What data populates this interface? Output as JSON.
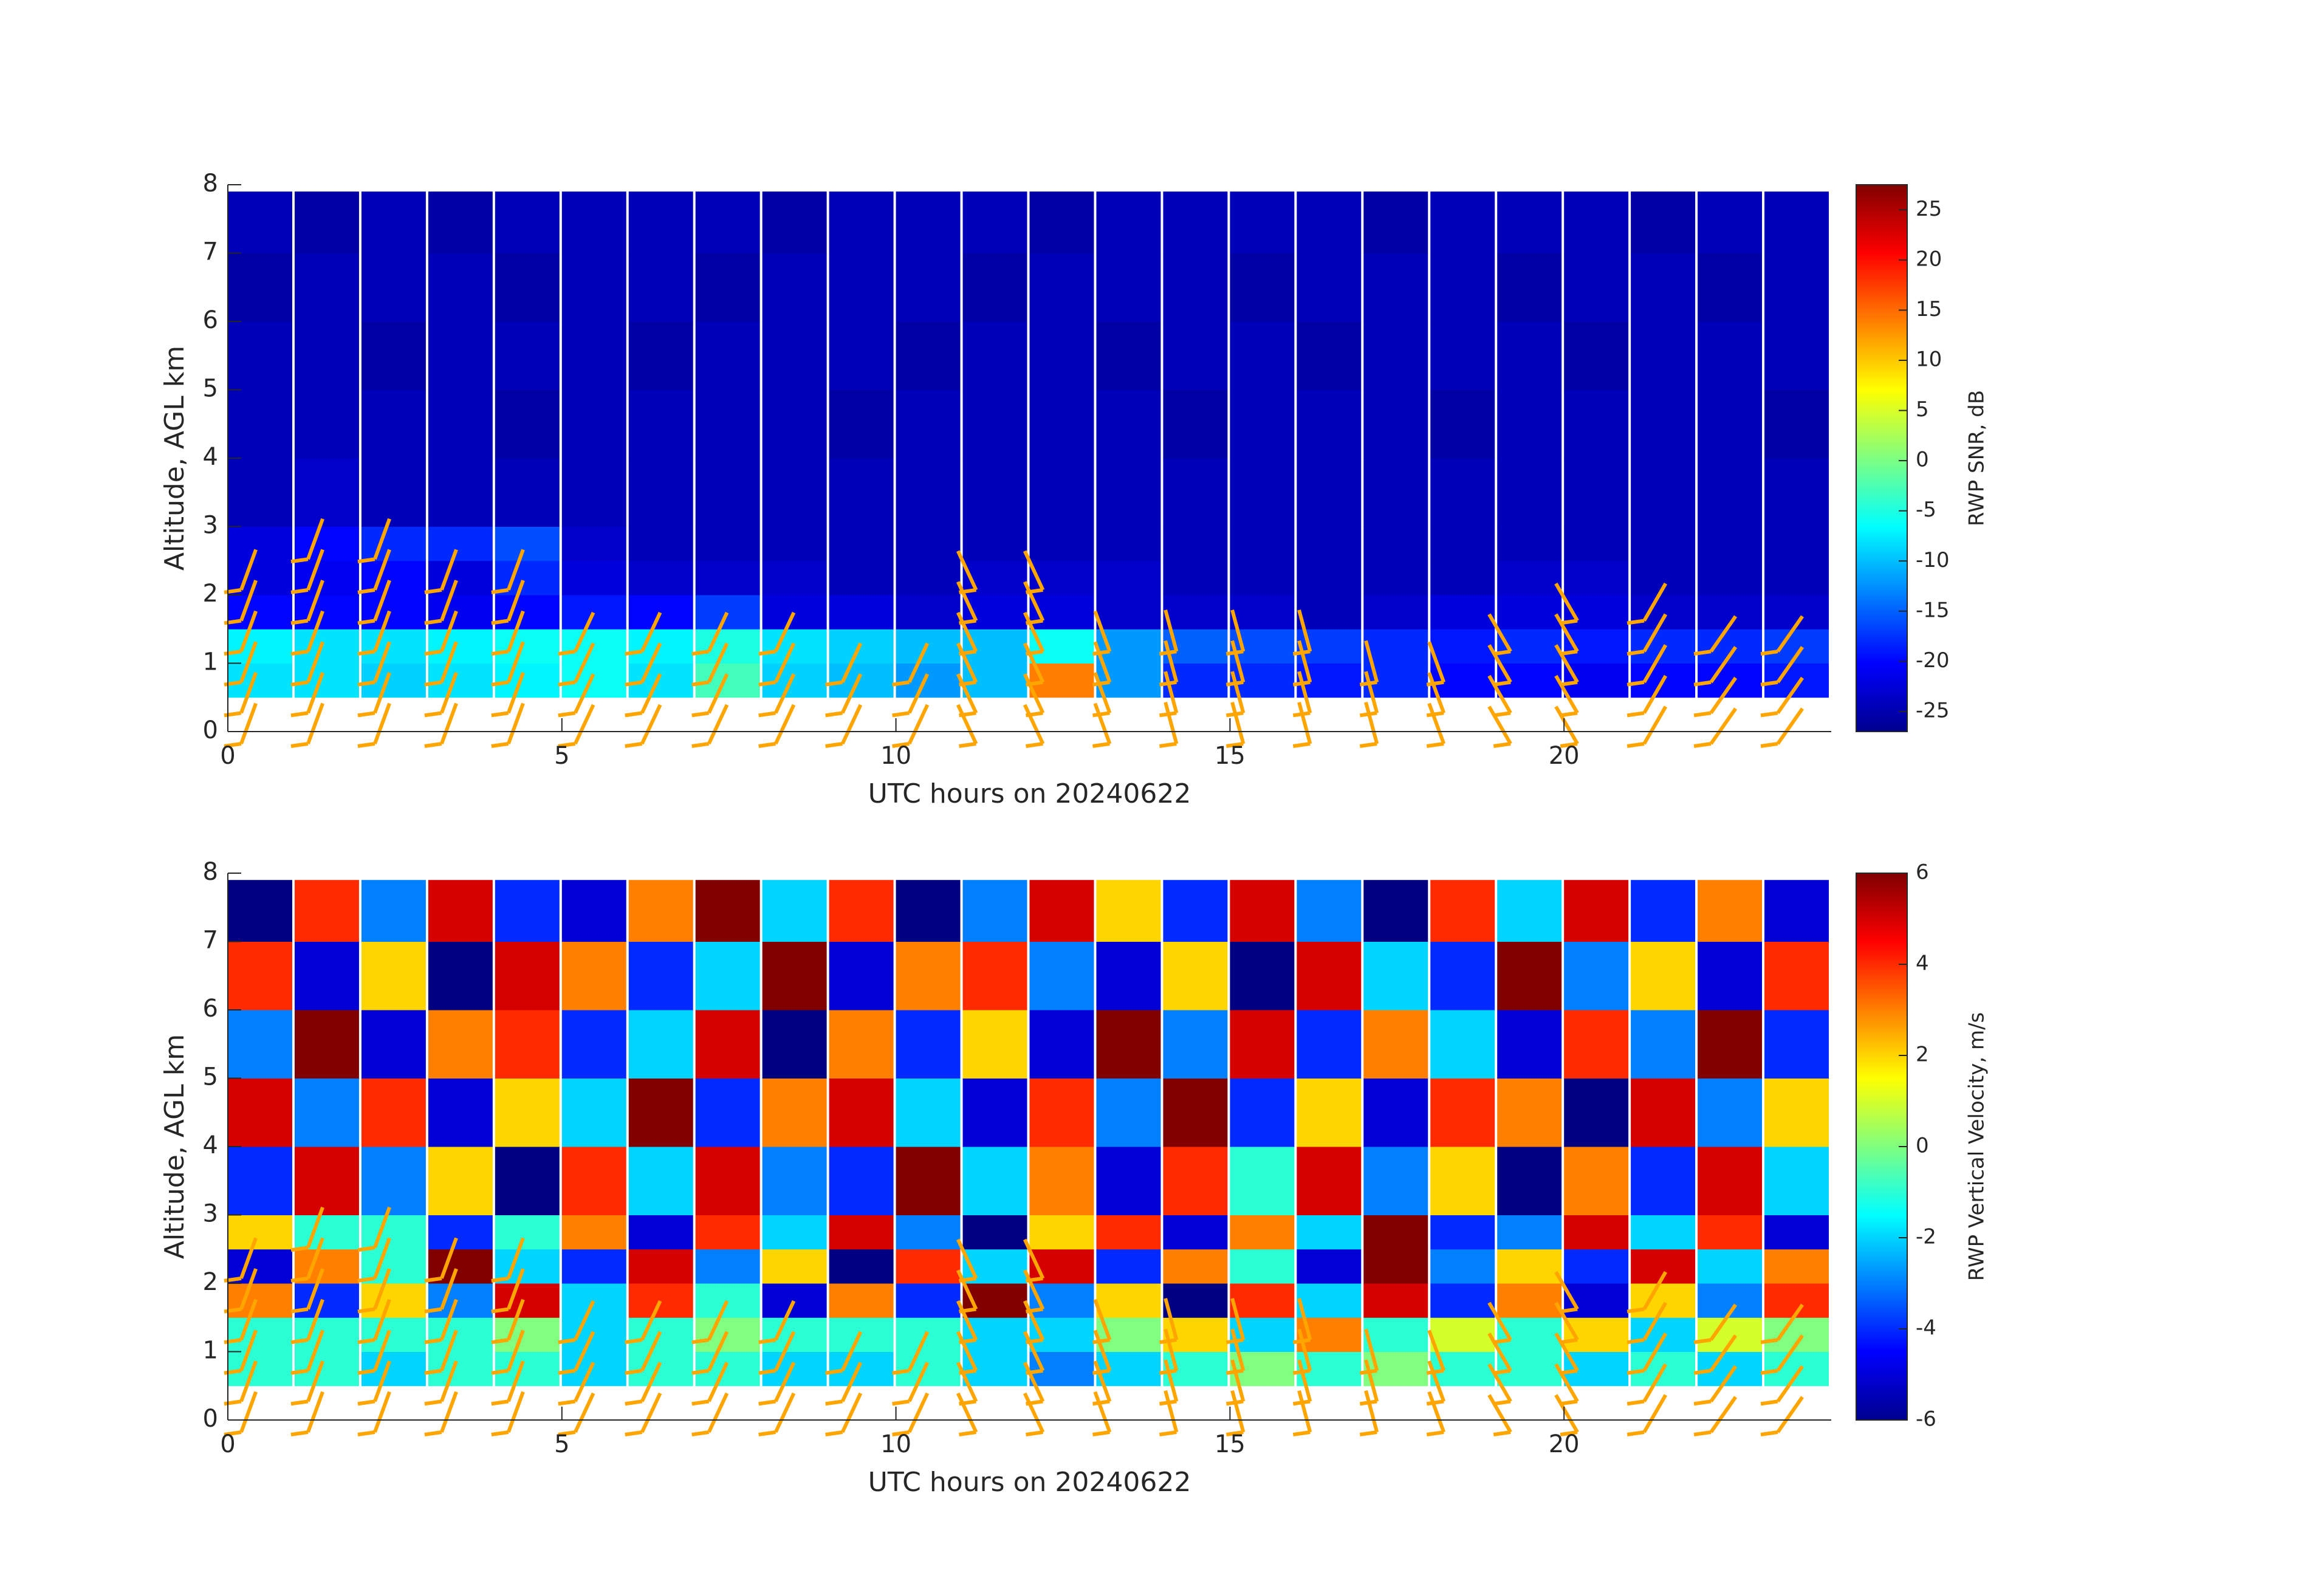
{
  "chart_data": [
    {
      "type": "heatmap",
      "colormap": "jet",
      "xlabel": "UTC hours on 20240622",
      "ylabel": "Altitude, AGL km",
      "colorbar_label": "RWP SNR, dB",
      "xlim": [
        0,
        24
      ],
      "ylim": [
        0,
        8
      ],
      "xticks": [
        0,
        5,
        10,
        15,
        20
      ],
      "yticks": [
        0,
        1,
        2,
        3,
        4,
        5,
        6,
        7,
        8
      ],
      "clim": [
        -27,
        27.5
      ],
      "colorbar_ticks": [
        -25,
        -20,
        -15,
        -10,
        -5,
        0,
        5,
        10,
        15,
        20,
        25
      ],
      "x_edges": [
        0,
        1,
        2,
        3,
        4,
        5,
        6,
        7,
        8,
        9,
        10,
        11,
        12,
        13,
        14,
        15,
        16,
        17,
        18,
        19,
        20,
        21,
        22,
        23,
        24
      ],
      "y_edges": [
        0.5,
        1,
        1.5,
        2,
        2.5,
        3,
        4,
        5,
        6,
        7,
        7.9
      ],
      "values": [
        [
          -8,
          -8,
          -9,
          -8,
          -7,
          -6,
          -8,
          -3,
          -9,
          -10,
          -12,
          -10,
          14,
          -12,
          -18,
          -18,
          -19,
          -18,
          -20,
          -20,
          -21,
          -20,
          -20,
          -19
        ],
        [
          -7,
          -8,
          -8,
          -7,
          -6,
          -6,
          -7,
          -5,
          -8,
          -9,
          -10,
          -10,
          -6,
          -12,
          -15,
          -16,
          -17,
          -18,
          -19,
          -18,
          -19,
          -18,
          -18,
          -17
        ],
        [
          -20,
          -20,
          -20,
          -21,
          -20,
          -19,
          -20,
          -17,
          -22,
          -22,
          -23,
          -22,
          -22,
          -23,
          -23,
          -23,
          -24,
          -23,
          -22,
          -22,
          -22,
          -23,
          -23,
          -23
        ],
        [
          -22,
          -21,
          -20,
          -22,
          -18,
          -22,
          -23,
          -23,
          -23,
          -24,
          -24,
          -23,
          -23,
          -23,
          -24,
          -24,
          -24,
          -24,
          -24,
          -23,
          -23,
          -24,
          -24,
          -24
        ],
        [
          -22,
          -20,
          -18,
          -18,
          -16,
          -23,
          -24,
          -24,
          -24,
          -24,
          -24,
          -24,
          -24,
          -24,
          -24,
          -24,
          -24,
          -24,
          -24,
          -24,
          -24,
          -24,
          -24,
          -24
        ],
        [
          -24,
          -23,
          -24,
          -24,
          -24,
          -24,
          -24,
          -24,
          -24,
          -24,
          -24,
          -24,
          -24,
          -24,
          -24,
          -24,
          -24,
          -24,
          -24,
          -24,
          -24,
          -24,
          -24,
          -24
        ],
        [
          -24,
          -24,
          -24,
          -24,
          -25,
          -24,
          -24,
          -24,
          -24,
          -25,
          -24,
          -24,
          -24,
          -24,
          -25,
          -24,
          -24,
          -24,
          -25,
          -24,
          -24,
          -24,
          -24,
          -25
        ],
        [
          -24,
          -24,
          -25,
          -24,
          -24,
          -24,
          -25,
          -24,
          -24,
          -24,
          -25,
          -24,
          -24,
          -25,
          -24,
          -24,
          -25,
          -24,
          -24,
          -24,
          -25,
          -24,
          -24,
          -24
        ],
        [
          -25,
          -24,
          -24,
          -24,
          -25,
          -24,
          -24,
          -25,
          -24,
          -24,
          -24,
          -25,
          -24,
          -24,
          -24,
          -25,
          -24,
          -24,
          -24,
          -25,
          -24,
          -24,
          -25,
          -24
        ],
        [
          -24,
          -25,
          -24,
          -25,
          -24,
          -24,
          -24,
          -24,
          -25,
          -24,
          -24,
          -24,
          -25,
          -24,
          -24,
          -24,
          -24,
          -25,
          -24,
          -24,
          -24,
          -25,
          -24,
          -24
        ]
      ],
      "barb_color": "#ffa500",
      "barbs": {
        "x": [
          0.2,
          1.2,
          2.2,
          3.2,
          4.2,
          5.2,
          6.2,
          7.2,
          8.2,
          9.2,
          10.2,
          11.2,
          12.2,
          13.2,
          14.2,
          15.2,
          16.2,
          17.2,
          18.2,
          19.2,
          20.2,
          21.2,
          22.2,
          23.2
        ],
        "top": [
          3,
          3.3,
          3.3,
          3,
          3,
          2,
          2,
          2,
          1.8,
          1.5,
          1.5,
          3,
          3,
          2,
          2,
          2,
          2,
          1.5,
          1.5,
          2,
          2.3,
          2.3,
          2.2,
          2.2
        ],
        "angle": [
          20,
          20,
          20,
          20,
          20,
          25,
          25,
          25,
          25,
          25,
          25,
          -25,
          -25,
          -20,
          -15,
          -15,
          -15,
          -15,
          -20,
          -30,
          -30,
          30,
          35,
          35
        ]
      }
    },
    {
      "type": "heatmap",
      "colormap": "jet",
      "xlabel": "UTC hours on 20240622",
      "ylabel": "Altitude, AGL km",
      "colorbar_label": "RWP Vertical Velocity, m/s",
      "xlim": [
        0,
        24
      ],
      "ylim": [
        0,
        8
      ],
      "xticks": [
        0,
        5,
        10,
        15,
        20
      ],
      "yticks": [
        0,
        1,
        2,
        3,
        4,
        5,
        6,
        7,
        8
      ],
      "clim": [
        -6,
        6
      ],
      "colorbar_ticks": [
        -6,
        -4,
        -2,
        0,
        2,
        4,
        6
      ],
      "x_edges": [
        0,
        1,
        2,
        3,
        4,
        5,
        6,
        7,
        8,
        9,
        10,
        11,
        12,
        13,
        14,
        15,
        16,
        17,
        18,
        19,
        20,
        21,
        22,
        23,
        24
      ],
      "y_edges": [
        0.5,
        1,
        1.5,
        2,
        2.5,
        3,
        4,
        5,
        6,
        7,
        7.9
      ],
      "values": [
        [
          -1,
          -1,
          -2,
          -1,
          -1,
          -2,
          -1,
          -1,
          -2,
          -2,
          -1,
          -2,
          -3,
          -2,
          -1,
          0,
          -1,
          0,
          -1,
          -1,
          -2,
          -1,
          -2,
          -1
        ],
        [
          -1,
          -1,
          -1,
          -1,
          0,
          -2,
          -1,
          0,
          -1,
          -1,
          -1,
          -2,
          -2,
          0,
          2,
          -2,
          3,
          -1,
          1,
          -1,
          2,
          -2,
          1,
          0
        ],
        [
          3,
          -4,
          2,
          -3,
          5,
          -2,
          4,
          -1,
          -5,
          3,
          -4,
          6,
          -3,
          2,
          -6,
          4,
          -2,
          5,
          -4,
          3,
          -5,
          2,
          -3,
          4
        ],
        [
          -5,
          3,
          -1,
          6,
          -2,
          -4,
          5,
          -3,
          2,
          -6,
          4,
          -2,
          5,
          -4,
          3,
          -1,
          -5,
          6,
          -3,
          2,
          -4,
          5,
          -2,
          3
        ],
        [
          2,
          -1,
          -1,
          -4,
          -1,
          3,
          -5,
          4,
          -2,
          5,
          -3,
          -6,
          2,
          4,
          -5,
          3,
          -2,
          6,
          -4,
          -3,
          5,
          -2,
          4,
          -5
        ],
        [
          -4,
          5,
          -3,
          2,
          -6,
          4,
          -2,
          5,
          -3,
          -4,
          6,
          -2,
          3,
          -5,
          4,
          -1,
          5,
          -3,
          2,
          -6,
          3,
          -4,
          5,
          -2
        ],
        [
          5,
          -3,
          4,
          -5,
          2,
          -2,
          6,
          -4,
          3,
          5,
          -2,
          -5,
          4,
          -3,
          6,
          -4,
          2,
          -5,
          4,
          3,
          -6,
          5,
          -3,
          2
        ],
        [
          -3,
          6,
          -5,
          3,
          4,
          -4,
          -2,
          5,
          -6,
          3,
          -4,
          2,
          -5,
          6,
          -3,
          5,
          -4,
          3,
          -2,
          -5,
          4,
          -3,
          6,
          -4
        ],
        [
          4,
          -5,
          2,
          -6,
          5,
          3,
          -4,
          -2,
          6,
          -5,
          3,
          4,
          -3,
          -5,
          2,
          -6,
          5,
          -2,
          -4,
          6,
          -3,
          2,
          -5,
          4
        ],
        [
          -6,
          4,
          -3,
          5,
          -4,
          -5,
          3,
          6,
          -2,
          4,
          -6,
          -3,
          5,
          2,
          -4,
          5,
          -3,
          -6,
          4,
          -2,
          5,
          -4,
          3,
          -5
        ]
      ],
      "barb_color": "#ffa500",
      "barbs": {
        "x": [
          0.2,
          1.2,
          2.2,
          3.2,
          4.2,
          5.2,
          6.2,
          7.2,
          8.2,
          9.2,
          10.2,
          11.2,
          12.2,
          13.2,
          14.2,
          15.2,
          16.2,
          17.2,
          18.2,
          19.2,
          20.2,
          21.2,
          22.2,
          23.2
        ],
        "top": [
          3,
          3.3,
          3.3,
          3,
          3,
          2,
          2,
          2,
          1.8,
          1.5,
          1.5,
          3,
          3,
          2,
          2,
          2,
          2,
          1.5,
          1.5,
          2,
          2.3,
          2.3,
          2.2,
          2.2
        ],
        "angle": [
          20,
          20,
          20,
          20,
          20,
          25,
          25,
          25,
          25,
          25,
          25,
          -25,
          -25,
          -20,
          -15,
          -15,
          -15,
          -15,
          -20,
          -30,
          -30,
          30,
          35,
          35
        ]
      }
    }
  ]
}
